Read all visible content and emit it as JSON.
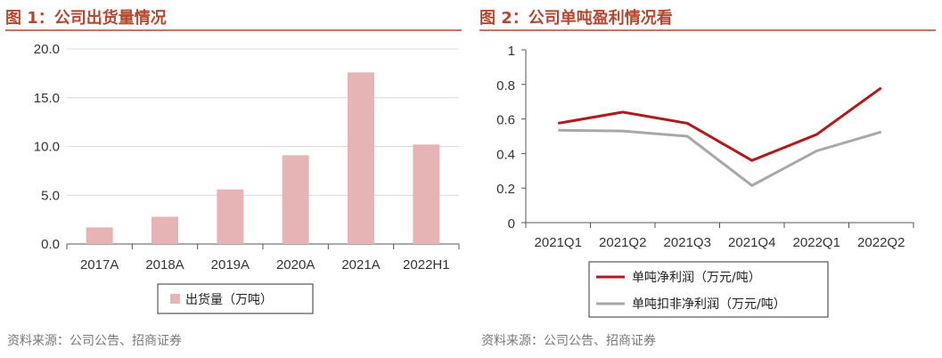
{
  "left_panel": {
    "title": "图 1：公司出货量情况",
    "source": "资料来源：公司公告、招商证券"
  },
  "right_panel": {
    "title": "图 2：公司单吨盈利情况看",
    "source": "资料来源：公司公告、招商证券"
  },
  "colors": {
    "title": "#b5462f",
    "rule": "#c9725f",
    "bar": "#e6b4b4",
    "net_profit_line": "#b01a1a",
    "non_recurring_line": "#a8a8a8"
  },
  "chart_data": [
    {
      "type": "bar",
      "categories": [
        "2017A",
        "2018A",
        "2019A",
        "2020A",
        "2021A",
        "2022H1"
      ],
      "series": [
        {
          "name": "出货量（万吨）",
          "values": [
            1.7,
            2.8,
            5.6,
            9.1,
            17.6,
            10.2
          ]
        }
      ],
      "ylim": [
        0,
        20
      ],
      "yticks": [
        "0.0",
        "5.0",
        "10.0",
        "15.0",
        "20.0"
      ],
      "grid": true,
      "legend": "bottom"
    },
    {
      "type": "line",
      "categories": [
        "2021Q1",
        "2021Q2",
        "2021Q3",
        "2021Q4",
        "2022Q1",
        "2022Q2"
      ],
      "series": [
        {
          "name": "单吨净利润（万元/吨）",
          "values": [
            0.575,
            0.64,
            0.575,
            0.36,
            0.51,
            0.78
          ]
        },
        {
          "name": "单吨扣非净利润（万元/吨）",
          "values": [
            0.535,
            0.53,
            0.5,
            0.215,
            0.415,
            0.525
          ]
        }
      ],
      "ylim": [
        0,
        1
      ],
      "yticks": [
        "0",
        "0.2",
        "0.4",
        "0.6",
        "0.8",
        "1"
      ],
      "grid": false,
      "legend": "bottom"
    }
  ]
}
